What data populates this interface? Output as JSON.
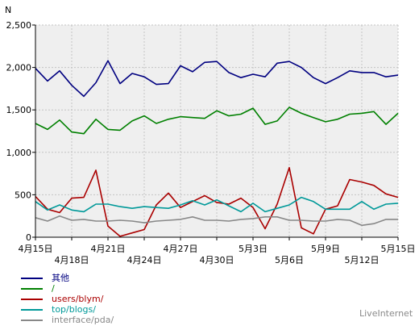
{
  "chart_data": {
    "type": "line",
    "title": "",
    "xlabel": "",
    "ylabel": "N",
    "ylim": [
      0,
      2500
    ],
    "yticks": [
      0,
      500,
      1000,
      1500,
      2000,
      2500
    ],
    "ytick_labels": [
      "0",
      "500",
      "1,000",
      "1,500",
      "2,000",
      "2,500"
    ],
    "grid": true,
    "legend_position": "bottom-left",
    "x": [
      "4月15日",
      "4月16日",
      "4月17日",
      "4月18日",
      "4月19日",
      "4月20日",
      "4月21日",
      "4月22日",
      "4月23日",
      "4月24日",
      "4月25日",
      "4月26日",
      "4月27日",
      "4月28日",
      "4月29日",
      "4月30日",
      "5月1日",
      "5月2日",
      "5月3日",
      "5月4日",
      "5月5日",
      "5月6日",
      "5月7日",
      "5月8日",
      "5月9日",
      "5月10日",
      "5月11日",
      "5月12日",
      "5月13日",
      "5月14日",
      "5月15日"
    ],
    "xtick_labels": [
      {
        "index": 0,
        "label": "4月15日",
        "row": 1
      },
      {
        "index": 3,
        "label": "4月18日",
        "row": 2
      },
      {
        "index": 6,
        "label": "4月21日",
        "row": 1
      },
      {
        "index": 9,
        "label": "4月24日",
        "row": 2
      },
      {
        "index": 12,
        "label": "4月27日",
        "row": 1
      },
      {
        "index": 15,
        "label": "4月30日",
        "row": 2
      },
      {
        "index": 18,
        "label": "5月3日",
        "row": 1
      },
      {
        "index": 21,
        "label": "5月6日",
        "row": 2
      },
      {
        "index": 24,
        "label": "5月9日",
        "row": 1
      },
      {
        "index": 27,
        "label": "5月12日",
        "row": 2
      },
      {
        "index": 30,
        "label": "5月15日",
        "row": 1
      }
    ],
    "series": [
      {
        "name": "其他",
        "color": "#000080",
        "values": [
          1990,
          1840,
          1960,
          1790,
          1660,
          1820,
          2080,
          1810,
          1930,
          1890,
          1800,
          1810,
          2020,
          1950,
          2060,
          2070,
          1940,
          1880,
          1920,
          1890,
          2050,
          2070,
          2000,
          1880,
          1810,
          1880,
          1960,
          1940,
          1940,
          1890,
          1910
        ]
      },
      {
        "name": "/",
        "color": "#008000",
        "values": [
          1340,
          1270,
          1380,
          1240,
          1220,
          1390,
          1270,
          1260,
          1370,
          1430,
          1340,
          1390,
          1420,
          1410,
          1400,
          1490,
          1430,
          1450,
          1520,
          1330,
          1370,
          1530,
          1460,
          1410,
          1360,
          1390,
          1450,
          1460,
          1480,
          1330,
          1460
        ]
      },
      {
        "name": "users/blym/",
        "color": "#aa0000",
        "values": [
          480,
          330,
          290,
          460,
          470,
          790,
          130,
          10,
          50,
          90,
          380,
          520,
          350,
          420,
          490,
          410,
          390,
          460,
          350,
          100,
          390,
          820,
          110,
          40,
          330,
          370,
          680,
          650,
          610,
          510,
          470
        ]
      },
      {
        "name": "top/blogs/",
        "color": "#009999",
        "values": [
          420,
          320,
          380,
          320,
          300,
          390,
          390,
          360,
          340,
          360,
          350,
          340,
          380,
          430,
          380,
          440,
          370,
          300,
          400,
          300,
          340,
          380,
          470,
          420,
          330,
          330,
          330,
          420,
          330,
          390,
          400
        ]
      },
      {
        "name": "interface/pda/",
        "color": "#888888",
        "values": [
          230,
          190,
          250,
          200,
          210,
          190,
          190,
          200,
          190,
          170,
          190,
          200,
          210,
          240,
          200,
          200,
          190,
          210,
          220,
          240,
          240,
          200,
          200,
          190,
          190,
          210,
          200,
          140,
          160,
          210,
          210
        ]
      }
    ],
    "watermark": "LiveInternet"
  }
}
